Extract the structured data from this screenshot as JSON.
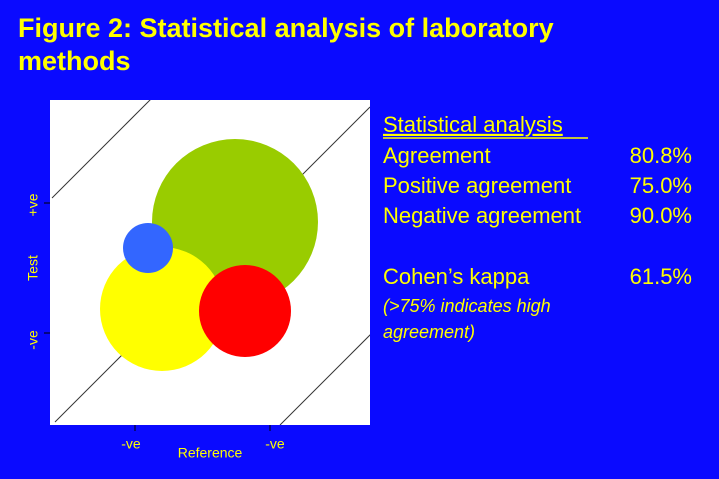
{
  "title": "Figure 2: Statistical analysis of laboratory methods",
  "title_lines": [
    "Figure 2: Statistical analysis of laboratory",
    "methods"
  ],
  "diagram": {
    "y_axis_label": "Test",
    "y_ticks": [
      "+ve",
      "-ve"
    ],
    "x_axis_label": "Reference",
    "x_ticks": [
      "-ve",
      "-ve"
    ]
  },
  "statistics": {
    "heading": "Statistical analysis",
    "rows": [
      [
        "Agreement",
        "80.8%"
      ],
      [
        "Positive agreement",
        "75.0%"
      ],
      [
        "Negative agreement",
        "90.0%"
      ],
      [
        "Cohen’s kappa",
        "61.5%"
      ]
    ],
    "note_lines": [
      "(>75% indicates high",
      "agreement)"
    ]
  }
}
